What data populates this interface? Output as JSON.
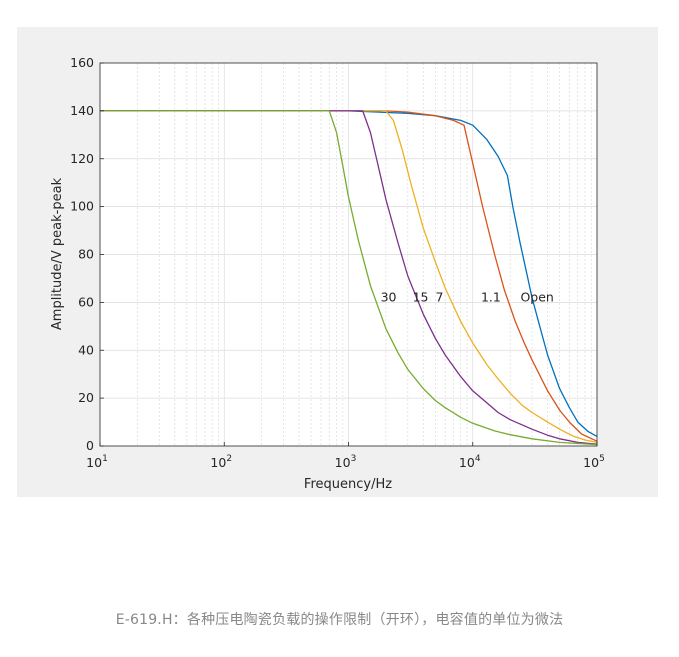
{
  "chart_data": {
    "type": "line",
    "xlabel": "Frequency/Hz",
    "ylabel": "Amplitude/V peak-peak",
    "x_scale": "log",
    "xlim": [
      10,
      100000
    ],
    "ylim": [
      0,
      160
    ],
    "grid": true,
    "x_tick_labels": [
      {
        "base": "10",
        "exp": "1"
      },
      {
        "base": "10",
        "exp": "2"
      },
      {
        "base": "10",
        "exp": "3"
      },
      {
        "base": "10",
        "exp": "4"
      },
      {
        "base": "10",
        "exp": "5"
      }
    ],
    "y_ticks": [
      0,
      20,
      40,
      60,
      80,
      100,
      120,
      140,
      160
    ],
    "series": [
      {
        "name": "Open",
        "color": "#0072BD",
        "x": [
          10,
          1000,
          3000,
          5000,
          8000,
          10000,
          13000,
          16000,
          19000,
          21000,
          24000,
          27000,
          30000,
          35000,
          40000,
          50000,
          60000,
          70000,
          85000,
          100000
        ],
        "y": [
          140,
          140,
          139,
          138,
          136,
          134,
          128,
          121,
          113,
          100,
          85,
          73,
          62,
          49,
          38,
          24,
          16,
          10,
          6,
          4
        ]
      },
      {
        "name": "1.1",
        "color": "#D95319",
        "x": [
          10,
          1000,
          2000,
          3000,
          5000,
          7000,
          8500,
          10000,
          12000,
          15000,
          18000,
          22000,
          26000,
          30000,
          35000,
          40000,
          50000,
          60000,
          75000,
          100000
        ],
        "y": [
          140,
          140,
          140,
          139.5,
          138,
          136,
          134,
          118,
          100,
          80,
          65,
          52,
          43,
          36,
          29,
          23,
          15,
          10,
          5,
          2
        ]
      },
      {
        "name": "7",
        "color": "#EDB120",
        "x": [
          10,
          2000,
          2300,
          2700,
          3200,
          4000,
          5000,
          6000,
          8000,
          10000,
          13000,
          16000,
          20000,
          25000,
          30000,
          40000,
          50000,
          65000,
          80000,
          100000
        ],
        "y": [
          140,
          140,
          136,
          124,
          109,
          91,
          77,
          66,
          52,
          43,
          34,
          28,
          22,
          17,
          14,
          10,
          7,
          4,
          2.5,
          1.5
        ]
      },
      {
        "name": "15",
        "color": "#7E2F8E",
        "x": [
          10,
          1300,
          1500,
          1700,
          2000,
          2500,
          3000,
          4000,
          5000,
          6000,
          8000,
          10000,
          13000,
          16000,
          20000,
          30000,
          40000,
          50000,
          70000,
          100000
        ],
        "y": [
          140,
          140,
          131,
          119,
          103,
          85,
          71,
          55,
          45,
          38,
          29,
          23,
          18,
          14,
          11,
          7,
          4.5,
          3,
          1.5,
          0.8
        ]
      },
      {
        "name": "30",
        "color": "#77AC30",
        "x": [
          10,
          700,
          800,
          900,
          1000,
          1200,
          1500,
          2000,
          2500,
          3000,
          4000,
          5000,
          6000,
          8000,
          10000,
          15000,
          20000,
          30000,
          50000,
          100000
        ],
        "y": [
          140,
          140,
          131,
          117,
          104,
          86,
          67,
          49,
          39,
          32,
          24,
          19,
          16,
          12,
          9.5,
          6.3,
          4.7,
          3,
          1.5,
          0.6
        ]
      }
    ],
    "annotations": [
      {
        "text": "30",
        "x": 2100,
        "y": 62
      },
      {
        "text": "15",
        "x": 3800,
        "y": 62
      },
      {
        "text": "7",
        "x": 5400,
        "y": 62
      },
      {
        "text": "1.1",
        "x": 14000,
        "y": 62
      },
      {
        "text": "Open",
        "x": 33000,
        "y": 62
      }
    ]
  },
  "caption": "E-619.H：各种压电陶瓷负载的操作限制（开环），电容值的单位为微法"
}
